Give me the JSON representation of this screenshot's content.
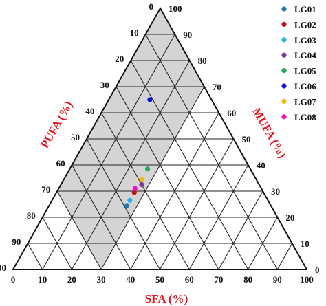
{
  "chart_data": {
    "type": "scatter",
    "subtype": "ternary",
    "axes": {
      "sfa": {
        "label": "SFA (%)",
        "range": [
          0,
          100
        ]
      },
      "mufa": {
        "label": "MUFA (%)",
        "range": [
          0,
          100
        ]
      },
      "pufa": {
        "label": "PUFA (%)",
        "range": [
          0,
          100
        ]
      }
    },
    "ticks": [
      "0",
      "10",
      "20",
      "30",
      "40",
      "50",
      "60",
      "70",
      "80",
      "90",
      "100"
    ],
    "grid": true,
    "grid_step": 10,
    "highlight_region": {
      "description": "PUFA 0-70, MUFA 30-100, SFA 0-30",
      "color": "#d4d4d4"
    },
    "legend_position": "top-right",
    "series": [
      {
        "name": "LG01",
        "color": "#1f77b4",
        "sfa": 26.5,
        "mufa": 24.5,
        "pufa": 49.0
      },
      {
        "name": "LG02",
        "color": "#c0121c",
        "sfa": 26.5,
        "mufa": 29.5,
        "pufa": 44.0
      },
      {
        "name": "LG03",
        "color": "#21b3e8",
        "sfa": 26.5,
        "mufa": 26.5,
        "pufa": 47.0
      },
      {
        "name": "LG04",
        "color": "#7a3aa0",
        "sfa": 27.5,
        "mufa": 32.5,
        "pufa": 40.0
      },
      {
        "name": "LG05",
        "color": "#2aa860",
        "sfa": 26.5,
        "mufa": 38.5,
        "pufa": 35.0
      },
      {
        "name": "LG06",
        "color": "#0a14e0",
        "sfa": 14.0,
        "mufa": 65.0,
        "pufa": 21.0
      },
      {
        "name": "LG07",
        "color": "#f2b61b",
        "sfa": 26.5,
        "mufa": 34.5,
        "pufa": 39.0
      },
      {
        "name": "LG08",
        "color": "#ee10cc",
        "sfa": 26.0,
        "mufa": 31.0,
        "pufa": 43.0
      }
    ]
  }
}
